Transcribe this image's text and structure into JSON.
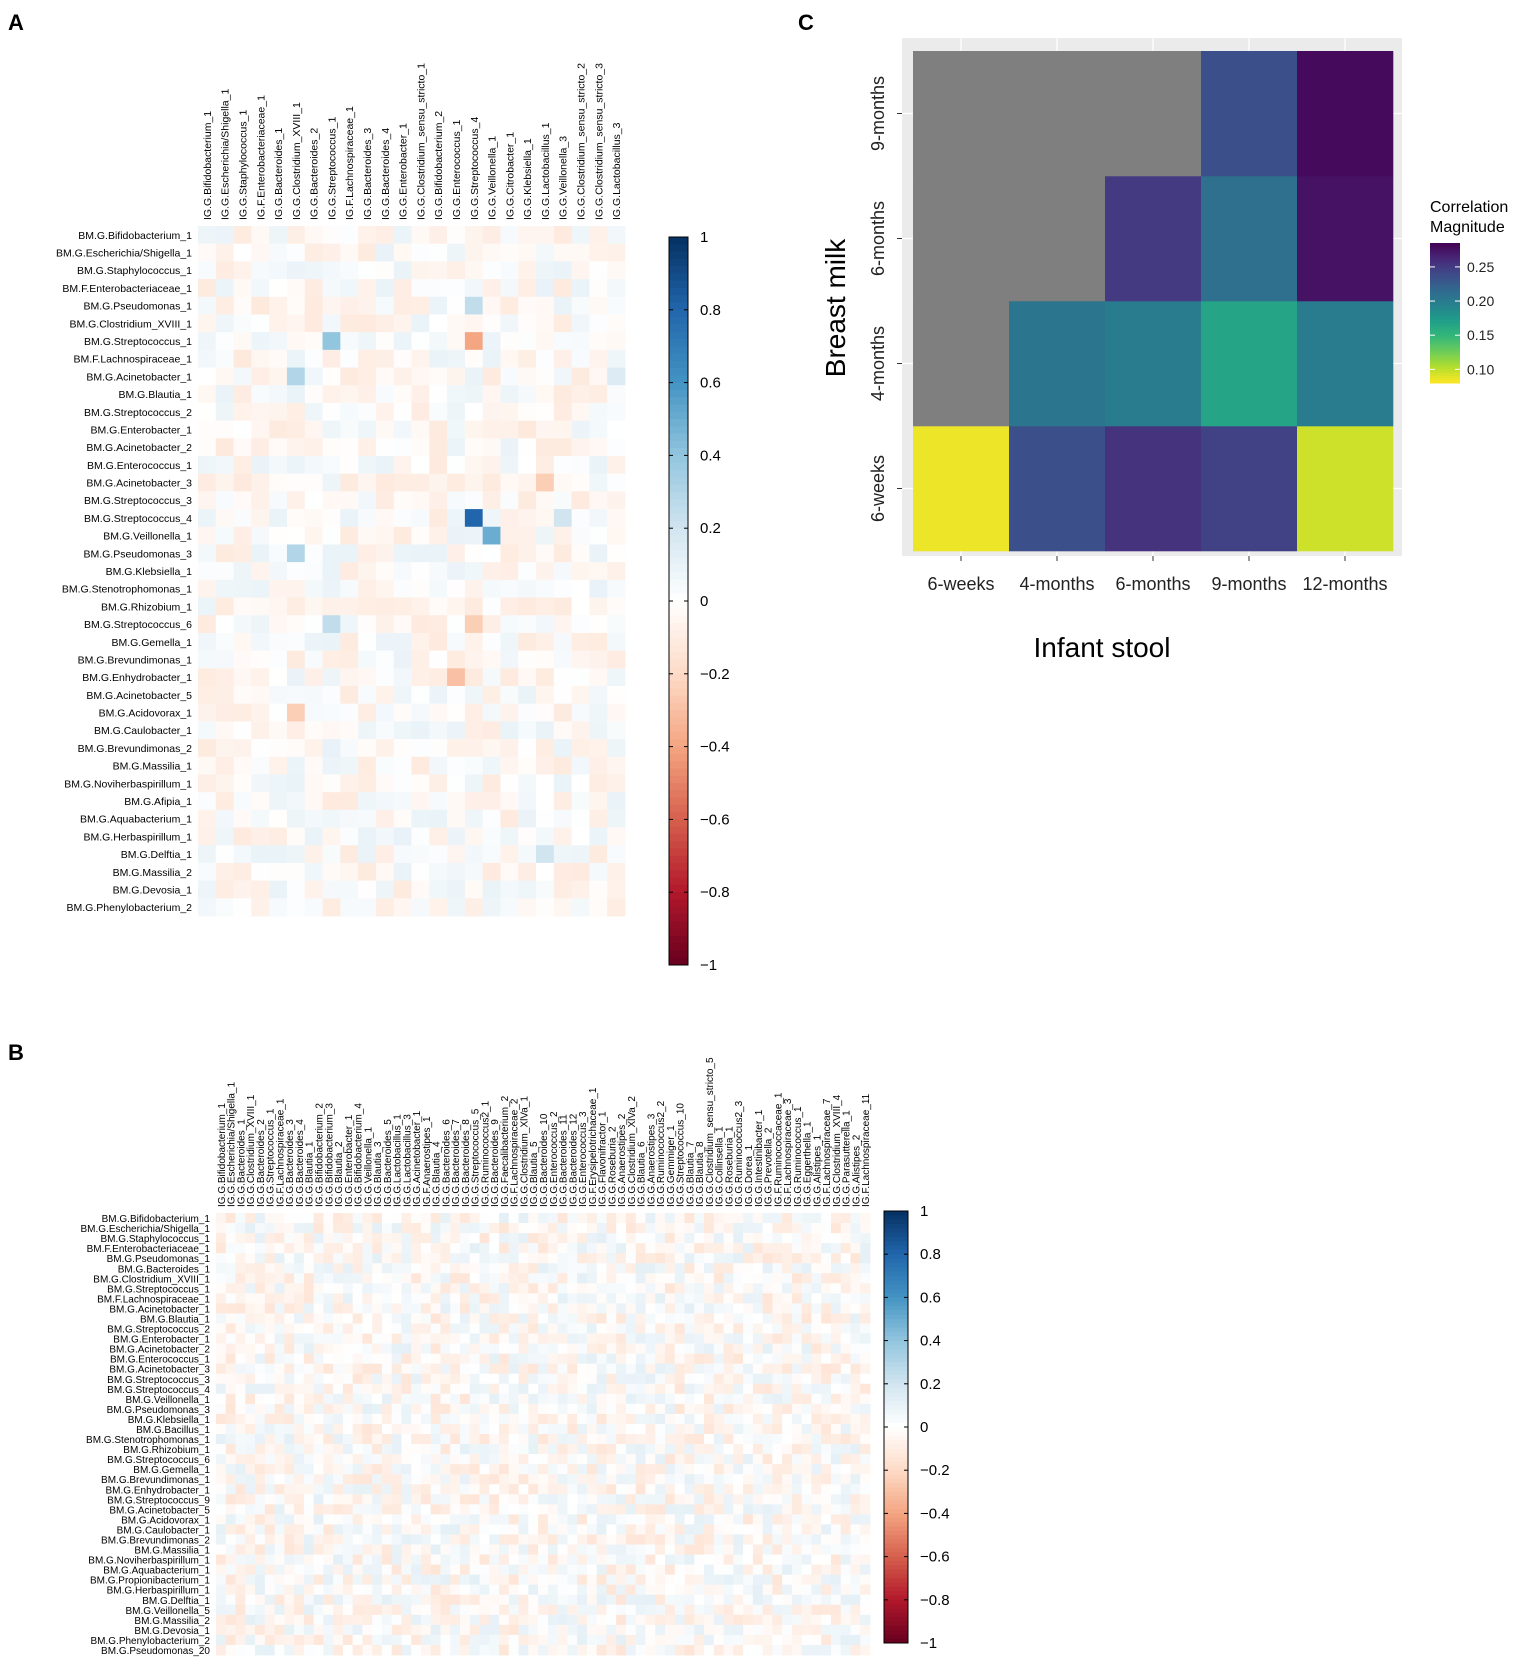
{
  "chart_data": [
    {
      "panel": "A",
      "type": "heatmap",
      "rows": [
        "BM.G.Bifidobacterium_1",
        "BM.G.Escherichia/Shigella_1",
        "BM.G.Staphylococcus_1",
        "BM.F.Enterobacteriaceae_1",
        "BM.G.Pseudomonas_1",
        "BM.G.Clostridium_XVIII_1",
        "BM.G.Streptococcus_1",
        "BM.F.Lachnospiraceae_1",
        "BM.G.Acinetobacter_1",
        "BM.G.Blautia_1",
        "BM.G.Streptococcus_2",
        "BM.G.Enterobacter_1",
        "BM.G.Acinetobacter_2",
        "BM.G.Enterococcus_1",
        "BM.G.Acinetobacter_3",
        "BM.G.Streptococcus_3",
        "BM.G.Streptococcus_4",
        "BM.G.Veillonella_1",
        "BM.G.Pseudomonas_3",
        "BM.G.Klebsiella_1",
        "BM.G.Stenotrophomonas_1",
        "BM.G.Rhizobium_1",
        "BM.G.Streptococcus_6",
        "BM.G.Gemella_1",
        "BM.G.Brevundimonas_1",
        "BM.G.Enhydrobacter_1",
        "BM.G.Acinetobacter_5",
        "BM.G.Acidovorax_1",
        "BM.G.Caulobacter_1",
        "BM.G.Brevundimonas_2",
        "BM.G.Massilia_1",
        "BM.G.Noviherbaspirillum_1",
        "BM.G.Afipia_1",
        "BM.G.Aquabacterium_1",
        "BM.G.Herbaspirillum_1",
        "BM.G.Delftia_1",
        "BM.G.Massilia_2",
        "BM.G.Devosia_1",
        "BM.G.Phenylobacterium_2"
      ],
      "columns": [
        "IG.G.Bifidobacterium_1",
        "IG.G.Escherichia/Shigella_1",
        "IG.G.Staphylococcus_1",
        "IG.F.Enterobacteriaceae_1",
        "IG.G.Bacteroides_1",
        "IG.G.Clostridium_XVIII_1",
        "IG.G.Bacteroides_2",
        "IG.G.Streptococcus_1",
        "IG.F.Lachnospiraceae_1",
        "IG.G.Bacteroides_3",
        "IG.G.Bacteroides_4",
        "IG.G.Enterobacter_1",
        "IG.G.Clostridium_sensu_stricto_1",
        "IG.G.Bifidobacterium_2",
        "IG.G.Enterococcus_1",
        "IG.G.Streptococcus_4",
        "IG.G.Veillonella_1",
        "IG.G.Citrobacter_1",
        "IG.G.Klebsiella_1",
        "IG.G.Lactobacillus_1",
        "IG.G.Veillonella_3",
        "IG.G.Clostridium_sensu_stricto_2",
        "IG.G.Clostridium_sensu_stricto_3",
        "IG.G.Lactobacillus_3"
      ],
      "strong_cells": [
        {
          "row": "BM.G.Streptococcus_4",
          "column": "IG.G.Streptococcus_4",
          "value": 0.8
        },
        {
          "row": "BM.G.Veillonella_1",
          "column": "IG.G.Veillonella_1",
          "value": 0.5
        },
        {
          "row": "BM.G.Streptococcus_1",
          "column": "IG.G.Streptococcus_1",
          "value": 0.4
        },
        {
          "row": "BM.G.Streptococcus_1",
          "column": "IG.G.Streptococcus_4",
          "value": -0.4
        },
        {
          "row": "BM.G.Acinetobacter_1",
          "column": "IG.G.Clostridium_XVIII_1",
          "value": 0.3
        },
        {
          "row": "BM.G.Pseudomonas_3",
          "column": "IG.G.Clostridium_XVIII_1",
          "value": 0.3
        },
        {
          "row": "BM.G.Pseudomonas_1",
          "column": "IG.G.Streptococcus_4",
          "value": 0.25
        },
        {
          "row": "BM.G.Streptococcus_6",
          "column": "IG.G.Streptococcus_1",
          "value": 0.25
        },
        {
          "row": "BM.G.Enhydrobacter_1",
          "column": "IG.G.Enterococcus_1",
          "value": -0.3
        },
        {
          "row": "BM.G.Acidovorax_1",
          "column": "IG.G.Clostridium_XVIII_1",
          "value": -0.25
        },
        {
          "row": "BM.G.Acinetobacter_3",
          "column": "IG.G.Lactobacillus_1",
          "value": -0.25
        },
        {
          "row": "BM.G.Streptococcus_6",
          "column": "IG.G.Streptococcus_4",
          "value": -0.25
        },
        {
          "row": "BM.G.Delftia_1",
          "column": "IG.G.Lactobacillus_1",
          "value": 0.2
        },
        {
          "row": "BM.G.Streptococcus_4",
          "column": "IG.G.Veillonella_3",
          "value": 0.2
        },
        {
          "row": "BM.G.Acinetobacter_1",
          "column": "IG.G.Lactobacillus_3",
          "value": 0.15
        }
      ],
      "colorbar": {
        "range": [
          -1,
          1
        ],
        "ticks": [
          "1",
          "0.8",
          "0.6",
          "0.4",
          "0.2",
          "0",
          "−0.2",
          "−0.4",
          "−0.6",
          "−0.8",
          "−1"
        ]
      }
    },
    {
      "panel": "B",
      "type": "heatmap",
      "rows": [
        "BM.G.Bifidobacterium_1",
        "BM.G.Escherichia/Shigella_1",
        "BM.G.Staphylococcus_1",
        "BM.F.Enterobacteriaceae_1",
        "BM.G.Pseudomonas_1",
        "BM.G.Bacteroides_1",
        "BM.G.Clostridium_XVIII_1",
        "BM.G.Streptococcus_1",
        "BM.F.Lachnospiraceae_1",
        "BM.G.Acinetobacter_1",
        "BM.G.Blautia_1",
        "BM.G.Streptococcus_2",
        "BM.G.Enterobacter_1",
        "BM.G.Acinetobacter_2",
        "BM.G.Enterococcus_1",
        "BM.G.Acinetobacter_3",
        "BM.G.Streptococcus_3",
        "BM.G.Streptococcus_4",
        "BM.G.Veillonella_1",
        "BM.G.Pseudomonas_3",
        "BM.G.Klebsiella_1",
        "BM.G.Bacillus_1",
        "BM.G.Stenotrophomonas_1",
        "BM.G.Rhizobium_1",
        "BM.G.Streptococcus_6",
        "BM.G.Gemella_1",
        "BM.G.Brevundimonas_1",
        "BM.G.Enhydrobacter_1",
        "BM.G.Streptococcus_9",
        "BM.G.Acinetobacter_5",
        "BM.G.Acidovorax_1",
        "BM.G.Caulobacter_1",
        "BM.G.Brevundimonas_2",
        "BM.G.Massilia_1",
        "BM.G.Noviherbaspirillum_1",
        "BM.G.Aquabacterium_1",
        "BM.G.Propionibacterium_1",
        "BM.G.Herbaspirillum_1",
        "BM.G.Delftia_1",
        "BM.G.Veillonella_5",
        "BM.G.Massilia_2",
        "BM.G.Devosia_1",
        "BM.G.Phenylobacterium_2",
        "BM.G.Pseudomonas_20"
      ],
      "columns": [
        "IG.G.Bifidobacterium_1",
        "IG.G.Escherichia/Shigella_1",
        "IG.G.Bacteroides_1",
        "IG.G.Clostridium_XVIII_1",
        "IG.G.Bacteroides_2",
        "IG.G.Streptococcus_1",
        "IG.F.Lachnospiraceae_1",
        "IG.G.Bacteroides_3",
        "IG.G.Bacteroides_4",
        "IG.G.Blautia_1",
        "IG.G.Bifidobacterium_2",
        "IG.G.Bifidobacterium_3",
        "IG.G.Blautia_2",
        "IG.G.Enterobacter_1",
        "IG.G.Bifidobacterium_4",
        "IG.G.Veillonella_1",
        "IG.G.Blautia_3",
        "IG.G.Bacteroides_5",
        "IG.G.Lactobacillus_1",
        "IG.G.Lactobacillus_3",
        "IG.G.Acinetobacter_1",
        "IG.F.Anaerostipes_1",
        "IG.G.Blautia_4",
        "IG.G.Bacteroides_6",
        "IG.G.Bacteroides_7",
        "IG.G.Bacteroides_8",
        "IG.G.Streptococcus_5",
        "IG.G.Ruminococcus2_1",
        "IG.G.Bacteroides_9",
        "IG.G.Faecalibacterium_2",
        "IG.F.Lachnospiraceae_2",
        "IG.G.Clostridium_XlVa_1",
        "IG.G.Blautia_5",
        "IG.G.Bacteroides_10",
        "IG.G.Enterococcus_2",
        "IG.G.Bacteroides_11",
        "IG.G.Bacteroides_12",
        "IG.G.Enterococcus_3",
        "IG.F.Erysipelotrichaceae_1",
        "IG.G.Flavonifractor_1",
        "IG.G.Roseburia_2",
        "IG.G.Anaerostipes_2",
        "IG.G.Clostridium_XlVa_2",
        "IG.G.Blautia_6",
        "IG.G.Anaerostipes_3",
        "IG.G.Ruminococcus2_2",
        "IG.G.Gemmiger_1",
        "IG.G.Streptococcus_10",
        "IG.G.Blautia_7",
        "IG.G.Blautia_8",
        "IG.G.Clostridium_sensu_stricto_5",
        "IG.G.Collinsella_1",
        "IG.G.Roseburia_1",
        "IG.G.Ruminococcus2_3",
        "IG.G.Dorea_1",
        "IG.G.Intestinibacter_1",
        "IG.G.Prevotella_2",
        "IG.F.Ruminococcaceae_1",
        "IG.F.Lachnospiraceae_3",
        "IG.G.Ruminococcus_1",
        "IG.G.Eggerthella_1",
        "IG.G.Alistipes_1",
        "IG.F.Lachnospiraceae_7",
        "IG.G.Clostridium_XVIII_4",
        "IG.G.Parasutterella_1",
        "IG.G.Alistipes_2",
        "IG.F.Lachnospiraceae_11"
      ],
      "colorbar": {
        "range": [
          -1,
          1
        ],
        "ticks": [
          "1",
          "0.8",
          "0.6",
          "0.4",
          "0.2",
          "0",
          "−0.2",
          "−0.4",
          "−0.6",
          "−0.8",
          "−1"
        ]
      }
    },
    {
      "panel": "C",
      "type": "heatmap",
      "xlabel": "Infant stool",
      "ylabel": "Breast milk",
      "x": [
        "6-weeks",
        "4-months",
        "6-months",
        "9-months",
        "12-months"
      ],
      "y": [
        "6-weeks",
        "4-months",
        "6-months",
        "9-months"
      ],
      "values": [
        [
          0.085,
          0.235,
          0.255,
          0.245,
          0.095
        ],
        [
          null,
          0.205,
          0.2,
          0.165,
          0.2
        ],
        [
          null,
          null,
          0.25,
          0.21,
          0.275
        ],
        [
          null,
          null,
          null,
          0.235,
          0.28
        ]
      ],
      "legend": {
        "title_line1": "Correlation",
        "title_line2": "Magnitude",
        "ticks": [
          "0.25",
          "0.20",
          "0.15",
          "0.10"
        ],
        "range": [
          0.08,
          0.285
        ],
        "placement": "right"
      },
      "colors": {
        "missing": "#7f7f7f",
        "panel_bg": "#ebebeb",
        "grid": "#ffffff"
      }
    }
  ],
  "panel_labels": {
    "a": "A",
    "b": "B",
    "c": "C"
  }
}
